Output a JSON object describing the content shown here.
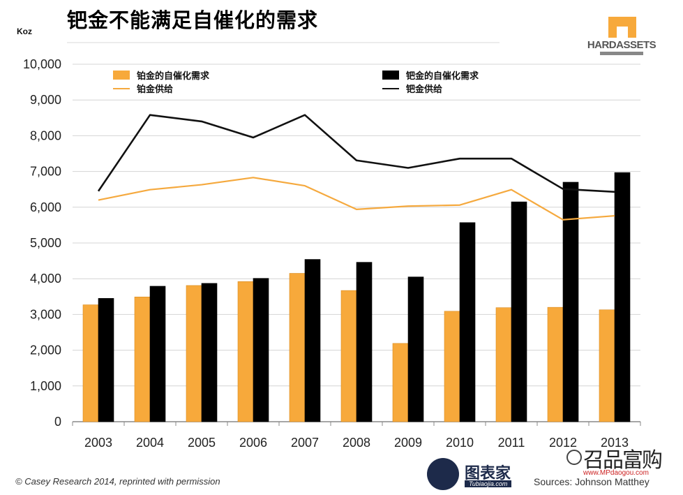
{
  "header": {
    "title": "钯金不能满足自催化的需求",
    "unit": "Koz"
  },
  "logo": {
    "text": "HARDASSETS"
  },
  "footer": {
    "credit": "© Casey Research 2014, reprinted with permission",
    "source": "Sources: Johnson Matthey"
  },
  "watermarks": {
    "left_text": "图表家",
    "left_sub": "Tubiaojia.com",
    "right_text": "召品富购",
    "right_sub": "www.MPdaogou.com"
  },
  "colors": {
    "platinum": "#F7A93B",
    "palladium": "#000000",
    "platinum_line": "#F5A93E",
    "palladium_line": "#111111",
    "grid": "#d4d4d4",
    "axis": "#888888"
  },
  "chart_data": {
    "type": "bar",
    "categories": [
      "2003",
      "2004",
      "2005",
      "2006",
      "2007",
      "2008",
      "2009",
      "2010",
      "2011",
      "2012",
      "2013"
    ],
    "ylim": [
      0,
      10000
    ],
    "yticks": [
      "0",
      "1,000",
      "2,000",
      "3,000",
      "4,000",
      "5,000",
      "6,000",
      "7,000",
      "8,000",
      "9,000",
      "10,000"
    ],
    "ylabel": "Koz",
    "grid": true,
    "legend_position": "top",
    "series": [
      {
        "name": "铂金的自催化需求",
        "kind": "bar",
        "color": "#F7A93B",
        "values": [
          3270,
          3490,
          3810,
          3920,
          4150,
          3670,
          2190,
          3090,
          3190,
          3200,
          3130
        ]
      },
      {
        "name": "钯金的自催化需求",
        "kind": "bar",
        "color": "#000000",
        "values": [
          3450,
          3790,
          3870,
          4010,
          4540,
          4460,
          4050,
          5570,
          6150,
          6700,
          6970
        ]
      },
      {
        "name": "铂金供给",
        "kind": "line",
        "color": "#F5A93E",
        "values": [
          6200,
          6490,
          6630,
          6830,
          6600,
          5940,
          6030,
          6060,
          6490,
          5650,
          5760
        ]
      },
      {
        "name": "钯金供给",
        "kind": "line",
        "color": "#111111",
        "values": [
          6450,
          8580,
          8400,
          7950,
          8580,
          7310,
          7100,
          7360,
          7360,
          6510,
          6430
        ]
      }
    ]
  }
}
